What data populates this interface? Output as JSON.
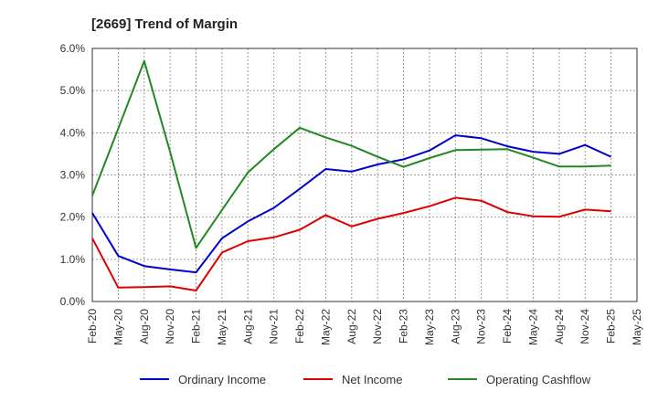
{
  "chart_data": {
    "type": "line",
    "title": "[2669]  Trend of Margin",
    "xlabel": "",
    "ylabel": "",
    "ylim": [
      0,
      6
    ],
    "y_tick_labels": [
      "0.0%",
      "1.0%",
      "2.0%",
      "3.0%",
      "4.0%",
      "5.0%",
      "6.0%"
    ],
    "categories": [
      "Feb-20",
      "May-20",
      "Aug-20",
      "Nov-20",
      "Feb-21",
      "May-21",
      "Aug-21",
      "Nov-21",
      "Feb-22",
      "May-22",
      "Aug-22",
      "Nov-22",
      "Feb-23",
      "May-23",
      "Aug-23",
      "Nov-23",
      "Feb-24",
      "May-24",
      "Aug-24",
      "Nov-24",
      "Feb-25",
      "May-25"
    ],
    "grid": true,
    "legend_position": "bottom",
    "series": [
      {
        "name": "Ordinary Income",
        "color": "#0000cc",
        "values": [
          2.1,
          1.08,
          0.84,
          0.76,
          0.69,
          1.5,
          1.9,
          2.22,
          2.67,
          3.14,
          3.08,
          3.25,
          3.37,
          3.58,
          3.94,
          3.87,
          3.68,
          3.55,
          3.5,
          3.71,
          3.43,
          null
        ]
      },
      {
        "name": "Net Income",
        "color": "#dd0000",
        "values": [
          1.5,
          0.33,
          0.34,
          0.36,
          0.26,
          1.16,
          1.43,
          1.52,
          1.7,
          2.05,
          1.78,
          1.96,
          2.1,
          2.26,
          2.46,
          2.39,
          2.12,
          2.02,
          2.01,
          2.18,
          2.14,
          null
        ]
      },
      {
        "name": "Operating Cashflow",
        "color": "#228822",
        "values": [
          2.51,
          4.1,
          5.7,
          3.55,
          1.27,
          2.17,
          3.06,
          3.61,
          4.12,
          3.89,
          3.69,
          3.43,
          3.19,
          3.4,
          3.59,
          3.6,
          3.61,
          3.41,
          3.2,
          3.2,
          3.22,
          null
        ]
      }
    ]
  }
}
